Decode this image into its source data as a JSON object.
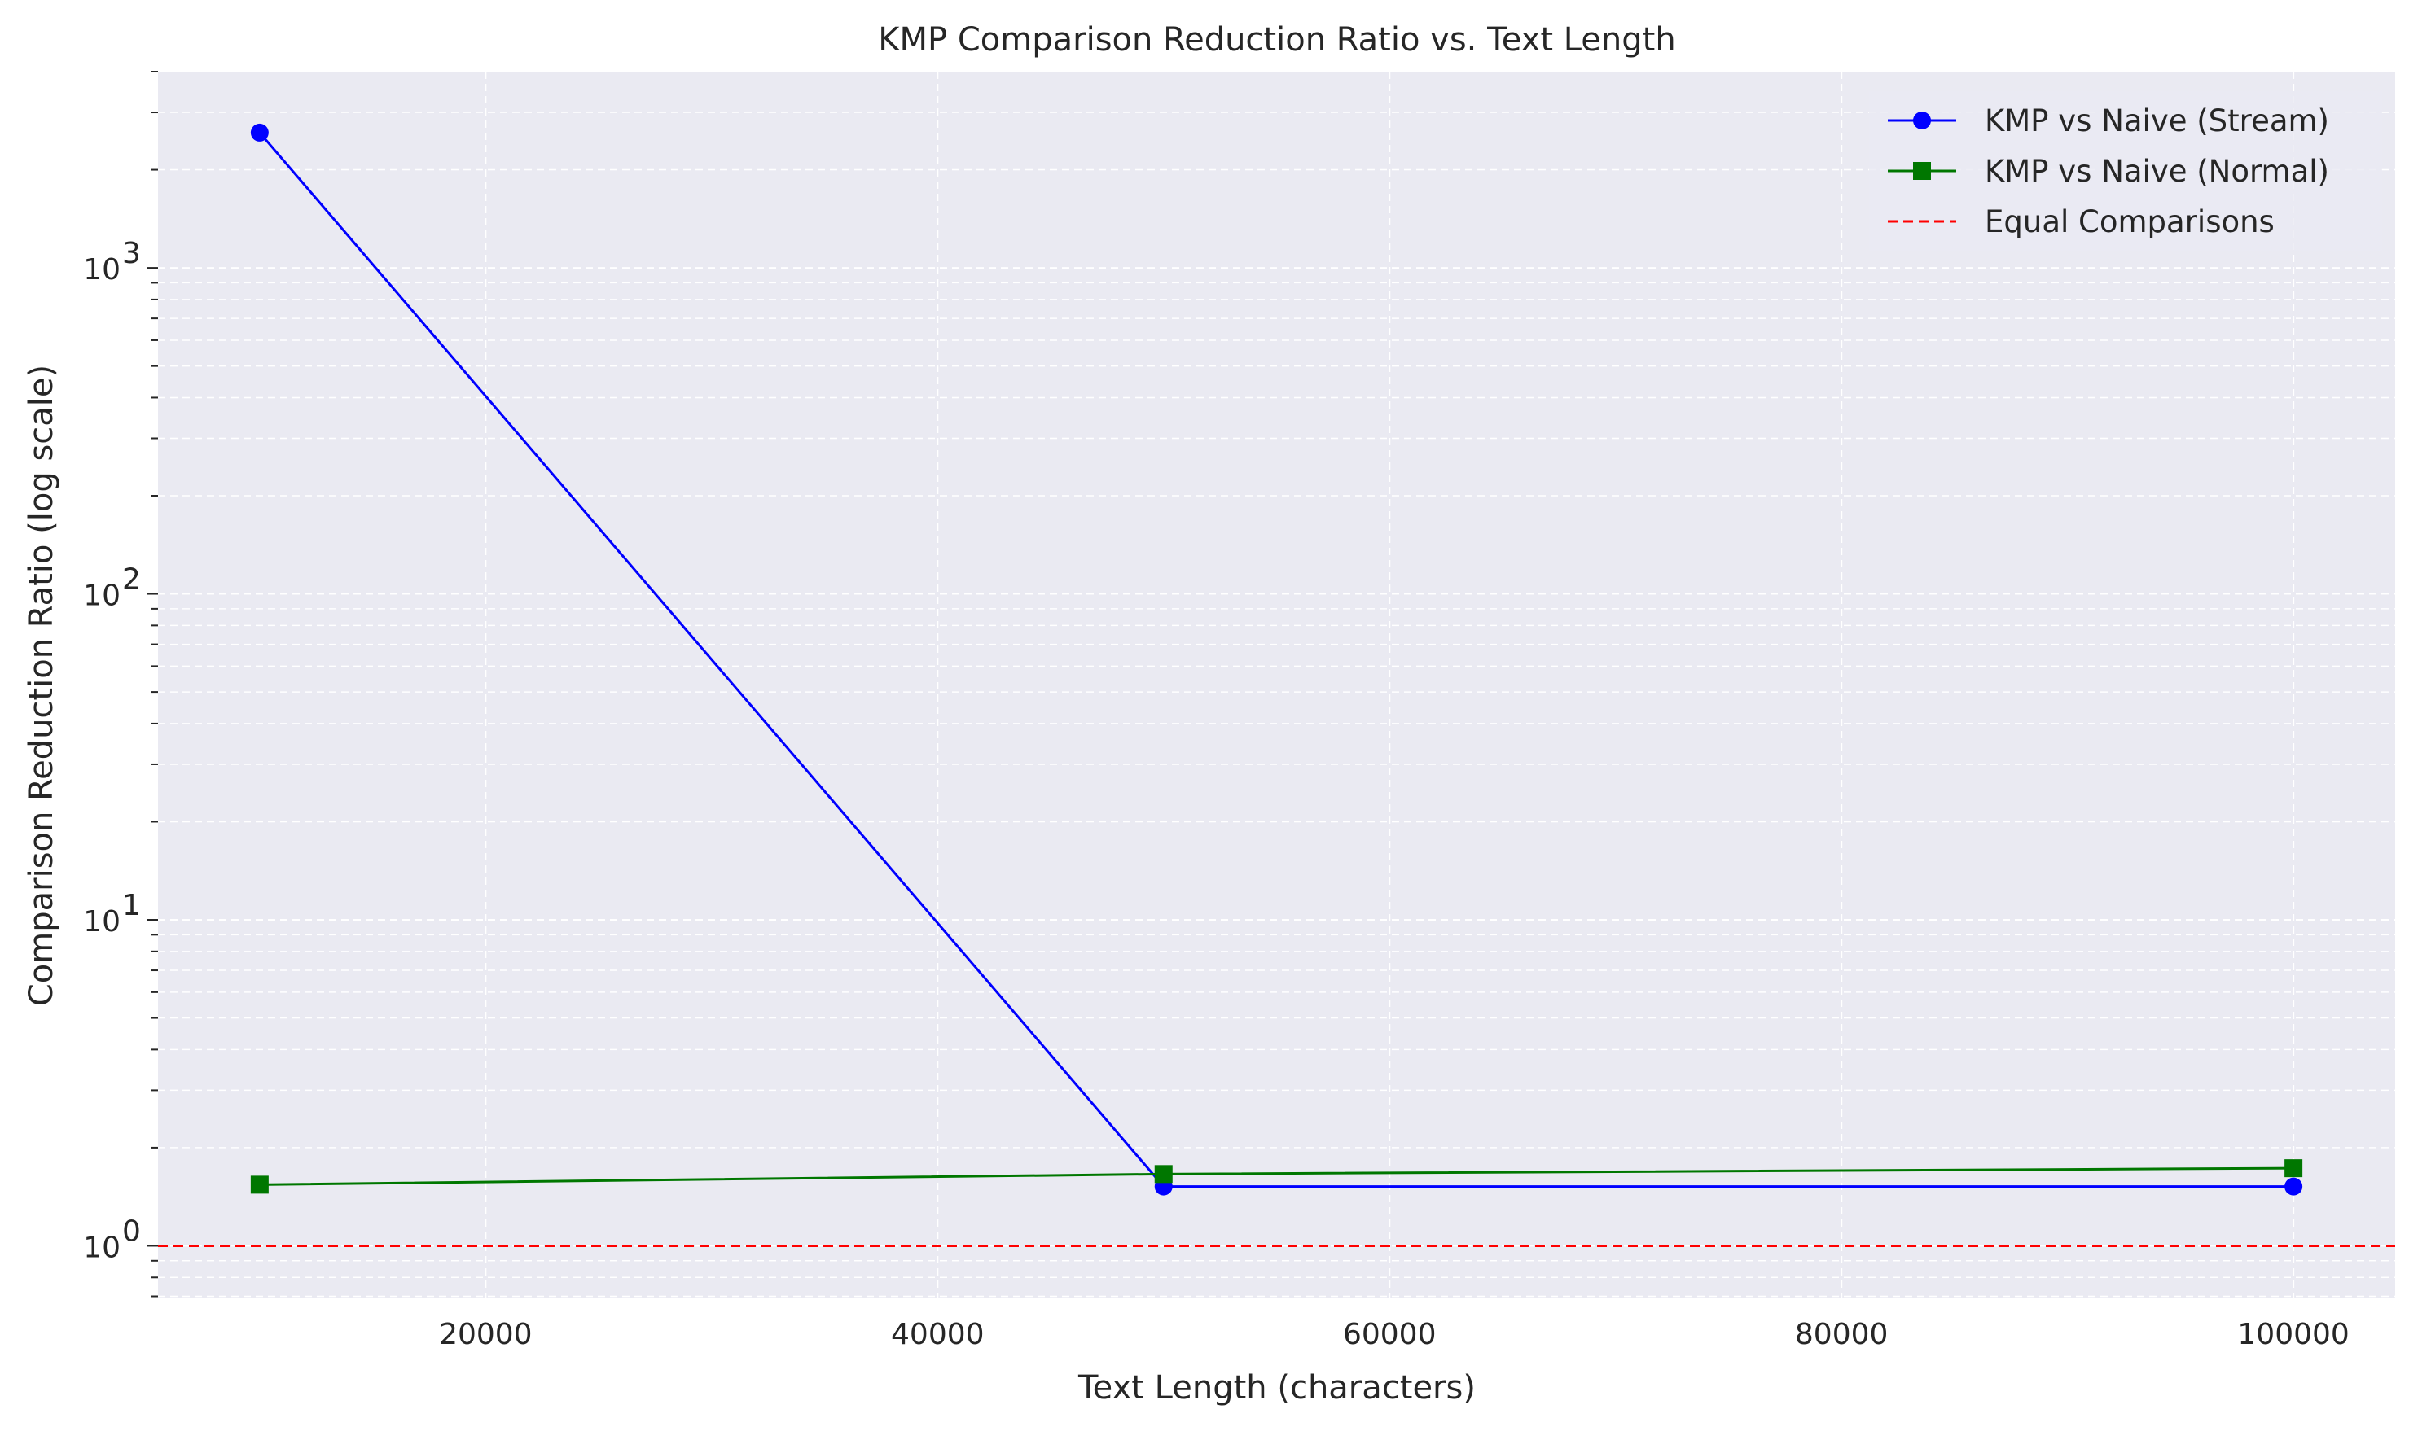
{
  "chart_data": {
    "type": "line",
    "title": "KMP Comparison Reduction Ratio vs. Text Length",
    "xlabel": "Text Length (characters)",
    "ylabel": "Comparison Reduction Ratio (log scale)",
    "xscale": "linear",
    "yscale": "log",
    "xlim": [
      5500,
      104500
    ],
    "ylim": [
      0.69,
      4000
    ],
    "x_ticks": [
      20000,
      40000,
      60000,
      80000,
      100000
    ],
    "x_tick_labels": [
      "20000",
      "40000",
      "60000",
      "80000",
      "100000"
    ],
    "y_ticks": [
      1,
      10,
      100,
      1000
    ],
    "y_tick_labels": [
      "10^0",
      "10^1",
      "10^2",
      "10^3"
    ],
    "grid": true,
    "legend_position": "top-right",
    "background": "#eaeaf2",
    "series": [
      {
        "name": "KMP vs Naive (Stream)",
        "color": "#0000ff",
        "marker": "circle",
        "line_style": "solid",
        "x": [
          10000,
          50000,
          100000
        ],
        "y": [
          2600,
          1.52,
          1.52
        ]
      },
      {
        "name": "KMP vs Naive (Normal)",
        "color": "#007700",
        "marker": "square",
        "line_style": "solid",
        "x": [
          10000,
          50000,
          100000
        ],
        "y": [
          1.54,
          1.66,
          1.73
        ]
      }
    ],
    "reference_lines": [
      {
        "name": "Equal Comparisons",
        "y": 1,
        "color": "#ff0000",
        "line_style": "dashed"
      }
    ]
  }
}
